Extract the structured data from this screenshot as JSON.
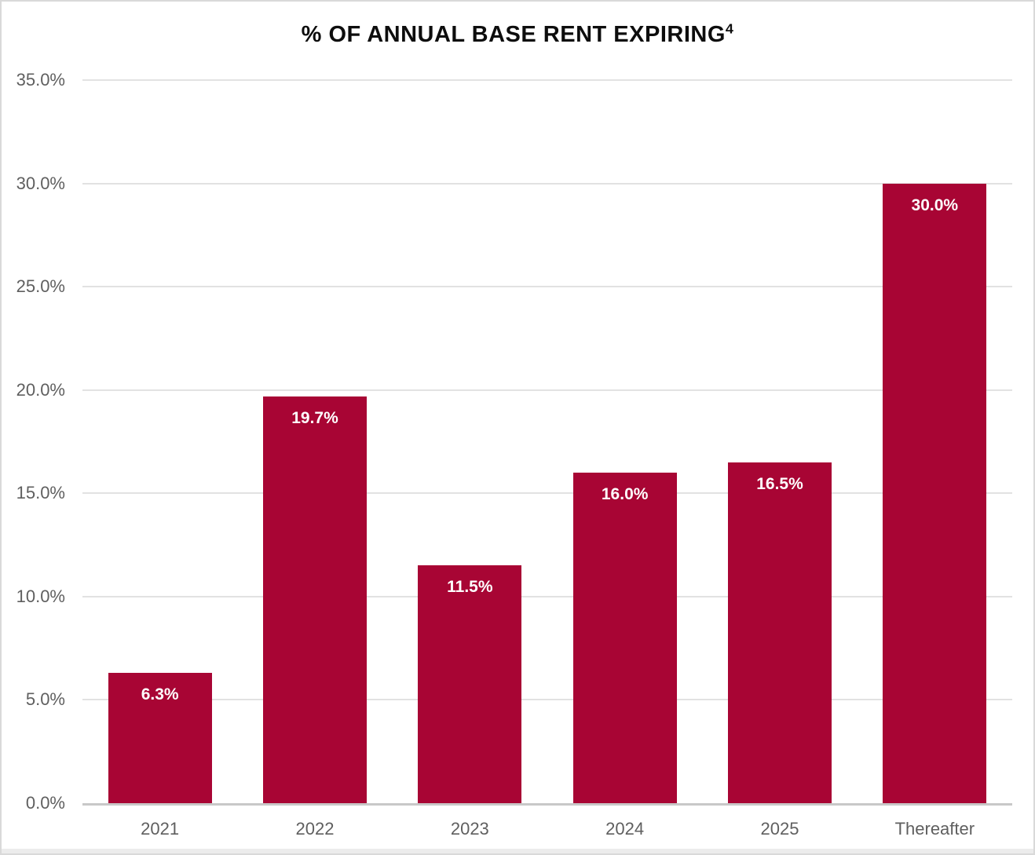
{
  "chart_data": {
    "type": "bar",
    "title": "% OF ANNUAL BASE RENT EXPIRING",
    "title_superscript": "4",
    "categories": [
      "2021",
      "2022",
      "2023",
      "2024",
      "2025",
      "Thereafter"
    ],
    "values": [
      6.3,
      19.7,
      11.5,
      16.0,
      16.5,
      30.0
    ],
    "data_labels": [
      "6.3%",
      "19.7%",
      "11.5%",
      "16.0%",
      "16.5%",
      "30.0%"
    ],
    "xlabel": "",
    "ylabel": "",
    "ylim": [
      0,
      35
    ],
    "y_ticks": [
      {
        "value": 35,
        "label": "35.0%"
      },
      {
        "value": 30,
        "label": "30.0%"
      },
      {
        "value": 25,
        "label": "25.0%"
      },
      {
        "value": 20,
        "label": "20.0%"
      },
      {
        "value": 15,
        "label": "15.0%"
      },
      {
        "value": 10,
        "label": "10.0%"
      },
      {
        "value": 5,
        "label": "5.0%"
      },
      {
        "value": 0,
        "label": "0.0%"
      }
    ],
    "grid": "horizontal",
    "legend": "none",
    "colors": {
      "bar": "#A80534",
      "value_label": "#FFFFFF",
      "axis_text": "#5F5F5F",
      "gridline": "#E2E2E2",
      "baseline": "#C8C8C8",
      "title_text": "#0D0D0D",
      "background": "#FFFFFF",
      "frame_border": "#D9D9D9"
    }
  }
}
